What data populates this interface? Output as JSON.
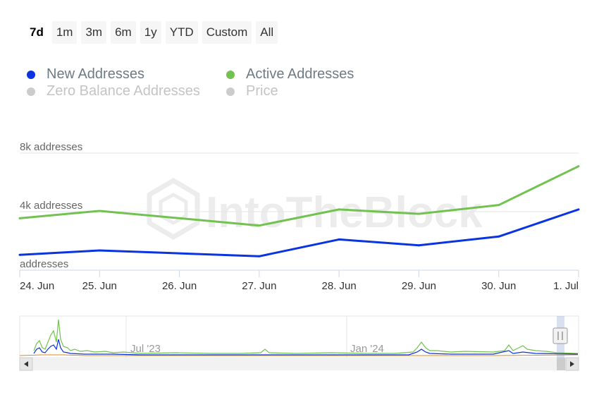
{
  "range_selector": {
    "buttons": [
      "7d",
      "1m",
      "3m",
      "6m",
      "1y",
      "YTD",
      "Custom",
      "All"
    ],
    "selected": "7d"
  },
  "legend": [
    {
      "label": "New Addresses",
      "color": "#0a34e0",
      "enabled": true
    },
    {
      "label": "Active Addresses",
      "color": "#72c251",
      "enabled": true
    },
    {
      "label": "Zero Balance Addresses",
      "color": "#cccccc",
      "enabled": false
    },
    {
      "label": "Price",
      "color": "#cccccc",
      "enabled": false
    }
  ],
  "watermark": "IntoTheBlock",
  "chart_data": {
    "type": "line",
    "x": [
      "24. Jun",
      "25. Jun",
      "26. Jun",
      "27. Jun",
      "28. Jun",
      "29. Jun",
      "30. Jun",
      "1. Jul"
    ],
    "y_ticks": [
      "addresses",
      "4k addresses",
      "8k addresses"
    ],
    "ylim": [
      0,
      8000
    ],
    "grid": true,
    "legend_position": "top-left",
    "series": [
      {
        "name": "New Addresses",
        "color": "#0a34e0",
        "values": [
          1050,
          1350,
          null,
          950,
          2100,
          1700,
          2300,
          4150
        ]
      },
      {
        "name": "Active Addresses",
        "color": "#72c251",
        "values": [
          3550,
          4050,
          null,
          3050,
          4150,
          3850,
          4450,
          7100
        ]
      }
    ]
  },
  "navigator": {
    "labels": [
      "Jul '23",
      "Jan '24"
    ],
    "colors": {
      "new": "#0a34e0",
      "active": "#72c251",
      "other": "#e08a1a"
    }
  }
}
